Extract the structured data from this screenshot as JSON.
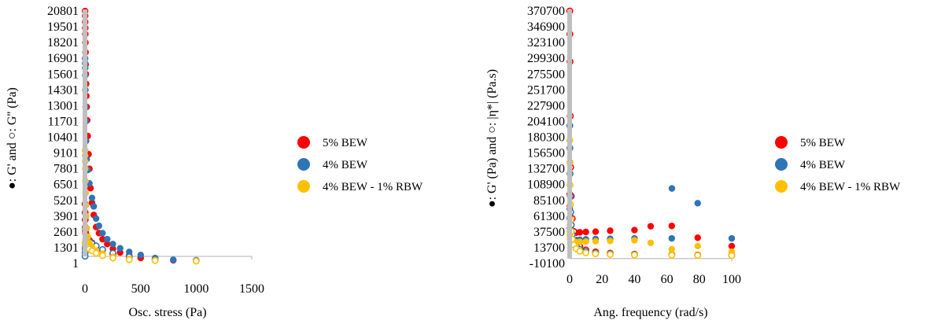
{
  "chart_data": [
    {
      "type": "scatter",
      "xlabel": "Osc. stress (Pa)",
      "ylabel": "●: G' and ○: G'' (Pa)",
      "xlim": [
        0,
        1500
      ],
      "ylim": [
        1,
        20801
      ],
      "x_ticks": [
        "0",
        "500",
        "1000",
        "1500"
      ],
      "y_ticks": [
        "1",
        "1301",
        "2601",
        "3901",
        "5201",
        "6501",
        "7801",
        "9101",
        "10401",
        "11701",
        "13001",
        "14301",
        "15601",
        "16901",
        "18201",
        "19501",
        "20801"
      ],
      "legend": {
        "position": "right"
      },
      "series": [
        {
          "name": "5% BEW",
          "color": "#ff0000",
          "filled": [
            [
              1,
              20800
            ],
            [
              1.5,
              20400
            ],
            [
              2,
              19900
            ],
            [
              2.5,
              19400
            ],
            [
              3,
              18900
            ],
            [
              4,
              18200
            ],
            [
              5,
              17400
            ],
            [
              6,
              16400
            ],
            [
              8,
              15600
            ],
            [
              10,
              14800
            ],
            [
              12,
              13800
            ],
            [
              16,
              12900
            ],
            [
              20,
              11800
            ],
            [
              25,
              10500
            ],
            [
              32,
              9000
            ],
            [
              40,
              7800
            ],
            [
              50,
              6200
            ],
            [
              63,
              5000
            ],
            [
              79,
              4000
            ],
            [
              100,
              3000
            ],
            [
              126,
              2500
            ],
            [
              158,
              2000
            ],
            [
              200,
              1600
            ],
            [
              251,
              1200
            ],
            [
              316,
              900
            ],
            [
              398,
              650
            ],
            [
              501,
              450
            ],
            [
              631,
              330
            ],
            [
              794,
              260
            ],
            [
              1000,
              200
            ]
          ],
          "open": [
            [
              1,
              4900
            ],
            [
              1.5,
              4200
            ],
            [
              2,
              3600
            ],
            [
              3,
              3000
            ],
            [
              4,
              2700
            ],
            [
              6,
              2500
            ],
            [
              8,
              2400
            ],
            [
              12,
              2250
            ],
            [
              16,
              2150
            ],
            [
              25,
              2050
            ],
            [
              40,
              1900
            ],
            [
              63,
              1700
            ],
            [
              100,
              1400
            ],
            [
              158,
              1100
            ],
            [
              251,
              750
            ],
            [
              398,
              450
            ],
            [
              631,
              300
            ],
            [
              1000,
              240
            ]
          ]
        },
        {
          "name": "4% BEW",
          "color": "#2e75b6",
          "filled": [
            [
              1,
              16900
            ],
            [
              1.5,
              16500
            ],
            [
              2,
              16100
            ],
            [
              3,
              15500
            ],
            [
              4,
              14300
            ],
            [
              6,
              12900
            ],
            [
              8,
              11700
            ],
            [
              10,
              10100
            ],
            [
              16,
              8600
            ],
            [
              25,
              7700
            ],
            [
              40,
              6600
            ],
            [
              63,
              5400
            ],
            [
              79,
              4700
            ],
            [
              100,
              3700
            ],
            [
              126,
              3100
            ],
            [
              158,
              2500
            ],
            [
              200,
              2000
            ],
            [
              251,
              1600
            ],
            [
              316,
              1250
            ],
            [
              398,
              950
            ],
            [
              501,
              700
            ],
            [
              631,
              450
            ],
            [
              794,
              300
            ],
            [
              1000,
              220
            ]
          ],
          "open": [
            [
              1,
              600
            ],
            [
              1.5,
              900
            ],
            [
              2,
              1200
            ],
            [
              3,
              1400
            ],
            [
              4,
              1600
            ],
            [
              6,
              1800
            ],
            [
              8,
              2000
            ],
            [
              12,
              2100
            ],
            [
              16,
              2100
            ],
            [
              25,
              1950
            ],
            [
              40,
              1800
            ],
            [
              63,
              1650
            ],
            [
              100,
              1450
            ],
            [
              158,
              1150
            ],
            [
              251,
              850
            ],
            [
              398,
              550
            ],
            [
              631,
              350
            ],
            [
              1000,
              250
            ]
          ]
        },
        {
          "name": "4% BEW - 1% RBW",
          "color": "#ffc000",
          "filled": [
            [
              1,
              9300
            ],
            [
              1.5,
              8900
            ],
            [
              2,
              8400
            ],
            [
              3,
              7800
            ],
            [
              4,
              6800
            ],
            [
              6,
              5800
            ],
            [
              8,
              4800
            ],
            [
              10,
              3900
            ],
            [
              16,
              2900
            ],
            [
              25,
              2200
            ],
            [
              40,
              1700
            ],
            [
              63,
              1350
            ],
            [
              100,
              1050
            ],
            [
              158,
              800
            ],
            [
              251,
              550
            ],
            [
              398,
              380
            ],
            [
              631,
              260
            ],
            [
              1000,
              200
            ]
          ],
          "open": [
            [
              1,
              1700
            ],
            [
              2,
              1650
            ],
            [
              3,
              1600
            ],
            [
              4,
              1550
            ],
            [
              6,
              1500
            ],
            [
              8,
              1450
            ],
            [
              12,
              1400
            ],
            [
              16,
              1350
            ],
            [
              25,
              1300
            ],
            [
              40,
              1200
            ],
            [
              63,
              1050
            ],
            [
              100,
              850
            ],
            [
              158,
              650
            ],
            [
              251,
              450
            ],
            [
              398,
              320
            ],
            [
              631,
              240
            ],
            [
              1000,
              200
            ]
          ]
        }
      ]
    },
    {
      "type": "scatter",
      "xlabel": "Ang. frequency (rad/s)",
      "ylabel": "●: G' (Pa) and ○: |η*| (Pa.s)",
      "xlim": [
        0,
        100
      ],
      "ylim": [
        -10100,
        384000
      ],
      "x_ticks": [
        "0",
        "20",
        "40",
        "60",
        "80",
        "100"
      ],
      "y_ticks": [
        "-10100",
        "13700",
        "37500",
        "61300",
        "85100",
        "108900",
        "132700",
        "156500",
        "180300",
        "204100",
        "227900",
        "251700",
        "275500",
        "299300",
        "323100",
        "346900",
        "370700"
      ],
      "legend": {
        "position": "right"
      },
      "series": [
        {
          "name": "5% BEW",
          "color": "#ff0000",
          "filled": [
            [
              0.1,
              98000
            ],
            [
              0.16,
              80000
            ],
            [
              0.25,
              62000
            ],
            [
              0.4,
              50000
            ],
            [
              0.63,
              44000
            ],
            [
              1,
              41000
            ],
            [
              1.6,
              39000
            ],
            [
              2.5,
              38500
            ],
            [
              4,
              38000
            ],
            [
              6.3,
              38500
            ],
            [
              10,
              39000
            ],
            [
              16,
              39500
            ],
            [
              25,
              41000
            ],
            [
              40,
              42000
            ],
            [
              50,
              48000
            ],
            [
              63,
              48500
            ],
            [
              79,
              30000
            ],
            [
              100,
              17000
            ]
          ],
          "open": [
            [
              0.1,
              384000
            ],
            [
              0.16,
              348000
            ],
            [
              0.25,
              305000
            ],
            [
              0.4,
              220000
            ],
            [
              0.63,
              140000
            ],
            [
              1,
              95000
            ],
            [
              1.6,
              60000
            ],
            [
              2.5,
              40000
            ],
            [
              4,
              26000
            ],
            [
              6.3,
              16000
            ],
            [
              10,
              11000
            ],
            [
              16,
              8000
            ],
            [
              25,
              6000
            ],
            [
              40,
              4500
            ],
            [
              63,
              3500
            ],
            [
              79,
              3000
            ],
            [
              100,
              2500
            ]
          ]
        },
        {
          "name": "4% BEW",
          "color": "#2e75b6",
          "filled": [
            [
              0.1,
              75000
            ],
            [
              0.16,
              60000
            ],
            [
              0.25,
              45000
            ],
            [
              0.4,
              35000
            ],
            [
              0.63,
              30000
            ],
            [
              1,
              28000
            ],
            [
              1.6,
              27000
            ],
            [
              2.5,
              26500
            ],
            [
              4,
              26500
            ],
            [
              6.3,
              27000
            ],
            [
              10,
              27500
            ],
            [
              16,
              28000
            ],
            [
              25,
              28500
            ],
            [
              40,
              29000
            ],
            [
              63,
              29000
            ],
            [
              63.1,
              107000
            ],
            [
              79,
              84000
            ],
            [
              100,
              29000
            ]
          ],
          "open": [
            [
              0.1,
              205000
            ],
            [
              0.16,
              170000
            ],
            [
              0.25,
              130000
            ],
            [
              0.4,
              95000
            ],
            [
              0.63,
              70000
            ],
            [
              1,
              50000
            ],
            [
              1.6,
              35000
            ],
            [
              2.5,
              25000
            ],
            [
              4,
              17000
            ],
            [
              6.3,
              12000
            ],
            [
              10,
              8500
            ],
            [
              16,
              6500
            ],
            [
              25,
              5000
            ],
            [
              40,
              4000
            ],
            [
              63,
              3500
            ],
            [
              79,
              3000
            ],
            [
              100,
              2500
            ]
          ]
        },
        {
          "name": "4% BEW - 1% RBW",
          "color": "#ffc000",
          "filled": [
            [
              0.1,
              40000
            ],
            [
              0.16,
              34000
            ],
            [
              0.25,
              29000
            ],
            [
              0.4,
              26000
            ],
            [
              0.63,
              24500
            ],
            [
              1,
              23500
            ],
            [
              1.6,
              23000
            ],
            [
              2.5,
              23000
            ],
            [
              4,
              23000
            ],
            [
              6.3,
              23500
            ],
            [
              10,
              24000
            ],
            [
              16,
              24500
            ],
            [
              25,
              25000
            ],
            [
              40,
              26000
            ],
            [
              50,
              22000
            ],
            [
              63,
              12000
            ],
            [
              79,
              17000
            ],
            [
              100,
              8000
            ]
          ],
          "open": [
            [
              0.1,
              182000
            ],
            [
              0.16,
              148000
            ],
            [
              0.25,
              112000
            ],
            [
              0.4,
              82000
            ],
            [
              0.63,
              58000
            ],
            [
              1,
              40000
            ],
            [
              1.6,
              28000
            ],
            [
              2.5,
              19000
            ],
            [
              4,
              13000
            ],
            [
              6.3,
              9000
            ],
            [
              10,
              6500
            ],
            [
              16,
              5000
            ],
            [
              25,
              4000
            ],
            [
              40,
              3200
            ],
            [
              63,
              2800
            ],
            [
              79,
              2500
            ],
            [
              100,
              2200
            ]
          ]
        }
      ]
    }
  ]
}
